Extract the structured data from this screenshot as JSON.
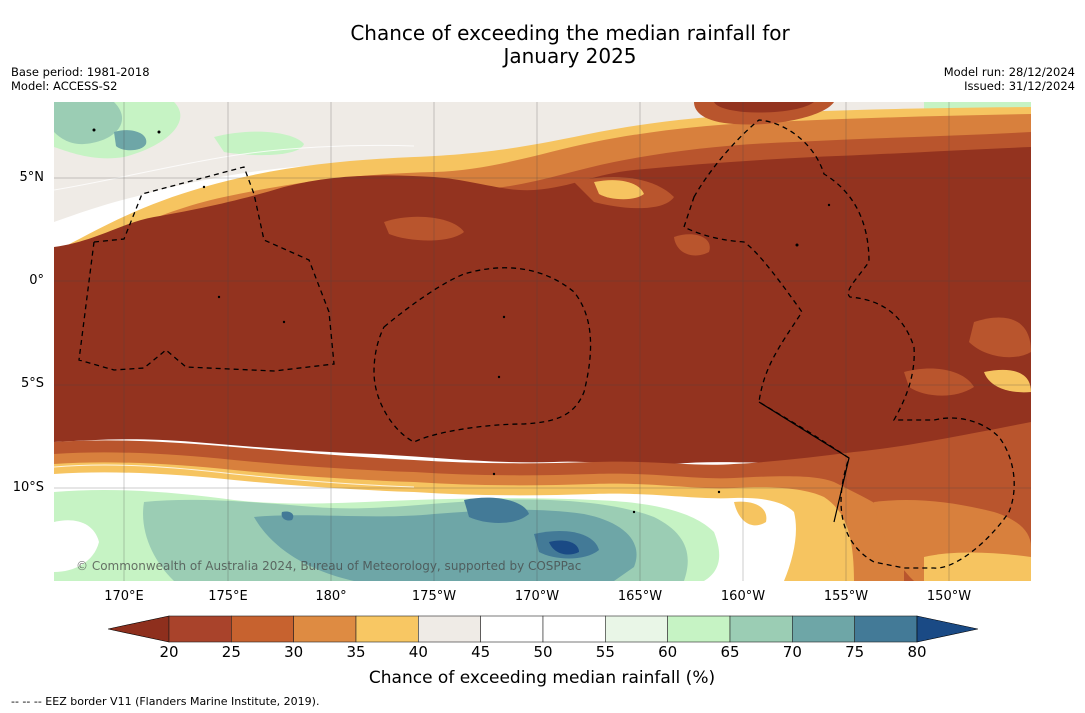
{
  "title_line1": "Chance of exceeding the median rainfall for",
  "title_line2": "January 2025",
  "base_period": "Base period: 1981-2018",
  "model": "Model: ACCESS-S2",
  "model_run": "Model run: 28/12/2024",
  "issued": "Issued: 31/12/2024",
  "copyright": "© Commonwealth of Australia 2024, Bureau of Meteorology, supported by COSPPac",
  "lat_labels": [
    "5°N",
    "0°",
    "5°S",
    "10°S"
  ],
  "lon_labels": [
    "170°E",
    "175°E",
    "180°",
    "175°W",
    "170°W",
    "165°W",
    "160°W",
    "155°W",
    "150°W"
  ],
  "colorbar": {
    "ticks": [
      "20",
      "25",
      "30",
      "35",
      "40",
      "45",
      "50",
      "55",
      "60",
      "65",
      "70",
      "75",
      "80"
    ],
    "label": "Chance of exceeding median rainfall (%)",
    "under_color": "#8e2f1d",
    "over_color": "#1a4a85",
    "colors": [
      "#a9432b",
      "#c7622f",
      "#de8b42",
      "#f8c763",
      "#efebe6",
      "#ffffff",
      "#ffffff",
      "#e9f6e7",
      "#c6f3c4",
      "#9bcdb4",
      "#6ea6a7",
      "#437a97"
    ]
  },
  "colors": {
    "dark_brown": "#93331f",
    "med_brown": "#b9552d",
    "orange": "#d8803d",
    "light_orange": "#f6c460",
    "grey_white": "#efebe6",
    "light_green": "#c6f3c4",
    "teal_green": "#9bcdb4",
    "teal": "#6ea6a7",
    "blue_teal": "#437a97",
    "dark_blue": "#1a4a85"
  },
  "eez_note": "--  --  -- EEZ border V11 (Flanders Marine Institute, 2019)."
}
